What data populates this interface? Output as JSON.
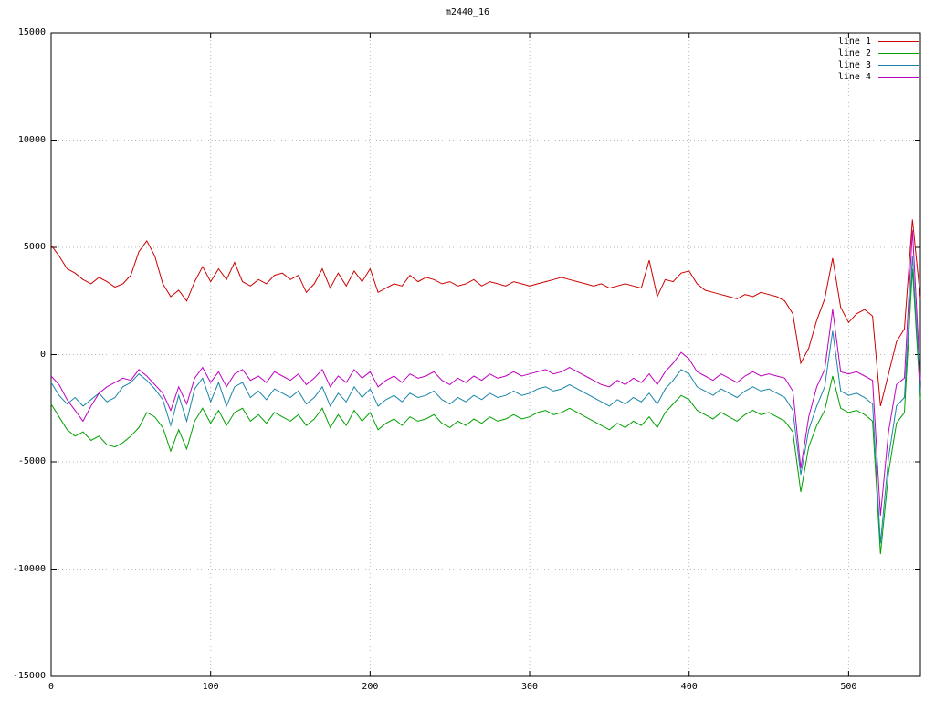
{
  "chart_data": {
    "type": "line",
    "title": "m2440_16",
    "xlabel": "",
    "ylabel": "",
    "xlim": [
      0,
      545
    ],
    "ylim": [
      -15000,
      15000
    ],
    "x_ticks": [
      0,
      100,
      200,
      300,
      400,
      500
    ],
    "y_ticks": [
      -15000,
      -10000,
      -5000,
      0,
      5000,
      10000,
      15000
    ],
    "grid": true,
    "grid_style": "dotted",
    "legend_position": "top-right",
    "background_color": "#ffffff",
    "x_start": 0,
    "x_step": 5,
    "series": [
      {
        "name": "line 1",
        "color": "#cc0000",
        "values": [
          5100,
          4600,
          4000,
          3800,
          3500,
          3300,
          3600,
          3400,
          3150,
          3300,
          3700,
          4800,
          5300,
          4600,
          3300,
          2700,
          3000,
          2500,
          3400,
          4100,
          3400,
          4000,
          3500,
          4300,
          3400,
          3200,
          3500,
          3300,
          3700,
          3800,
          3500,
          3700,
          2900,
          3300,
          4000,
          3100,
          3800,
          3200,
          3900,
          3400,
          4000,
          2900,
          3100,
          3300,
          3200,
          3700,
          3400,
          3600,
          3500,
          3300,
          3400,
          3200,
          3300,
          3500,
          3200,
          3400,
          3300,
          3200,
          3400,
          3300,
          3200,
          3300,
          3400,
          3500,
          3600,
          3500,
          3400,
          3300,
          3200,
          3300,
          3100,
          3200,
          3300,
          3200,
          3100,
          4400,
          2700,
          3500,
          3400,
          3800,
          3900,
          3300,
          3000,
          2900,
          2800,
          2700,
          2600,
          2800,
          2700,
          2900,
          2800,
          2700,
          2500,
          1900,
          -400,
          300,
          1600,
          2600,
          4500,
          2200,
          1500,
          1900,
          2100,
          1800,
          -2400,
          -900,
          600,
          1200,
          6300,
          2600
        ]
      },
      {
        "name": "line 2",
        "color": "#00a000",
        "values": [
          -2300,
          -2900,
          -3500,
          -3800,
          -3600,
          -4000,
          -3800,
          -4200,
          -4300,
          -4100,
          -3800,
          -3400,
          -2700,
          -2900,
          -3400,
          -4500,
          -3500,
          -4400,
          -3100,
          -2500,
          -3200,
          -2600,
          -3300,
          -2700,
          -2500,
          -3100,
          -2800,
          -3200,
          -2700,
          -2900,
          -3100,
          -2800,
          -3300,
          -3000,
          -2500,
          -3400,
          -2800,
          -3300,
          -2600,
          -3100,
          -2700,
          -3500,
          -3200,
          -3000,
          -3300,
          -2900,
          -3100,
          -3000,
          -2800,
          -3200,
          -3400,
          -3100,
          -3300,
          -3000,
          -3200,
          -2900,
          -3100,
          -3000,
          -2800,
          -3000,
          -2900,
          -2700,
          -2600,
          -2800,
          -2700,
          -2500,
          -2700,
          -2900,
          -3100,
          -3300,
          -3500,
          -3200,
          -3400,
          -3100,
          -3300,
          -2900,
          -3400,
          -2700,
          -2300,
          -1900,
          -2100,
          -2600,
          -2800,
          -3000,
          -2700,
          -2900,
          -3100,
          -2800,
          -2600,
          -2800,
          -2700,
          -2900,
          -3100,
          -3600,
          -6400,
          -4300,
          -3300,
          -2600,
          -1000,
          -2500,
          -2700,
          -2600,
          -2800,
          -3100,
          -9300,
          -5500,
          -3200,
          -2700,
          4000,
          -2100
        ]
      },
      {
        "name": "line 3",
        "color": "#1a85a8",
        "values": [
          -1300,
          -1900,
          -2300,
          -2000,
          -2400,
          -2100,
          -1800,
          -2200,
          -2000,
          -1500,
          -1300,
          -900,
          -1200,
          -1600,
          -2100,
          -3300,
          -1900,
          -3100,
          -1600,
          -1100,
          -2200,
          -1300,
          -2400,
          -1500,
          -1300,
          -2000,
          -1700,
          -2100,
          -1600,
          -1800,
          -2000,
          -1700,
          -2300,
          -2000,
          -1500,
          -2400,
          -1800,
          -2200,
          -1500,
          -2000,
          -1600,
          -2400,
          -2100,
          -1900,
          -2200,
          -1800,
          -2000,
          -1900,
          -1700,
          -2100,
          -2300,
          -2000,
          -2200,
          -1900,
          -2100,
          -1800,
          -2000,
          -1900,
          -1700,
          -1900,
          -1800,
          -1600,
          -1500,
          -1700,
          -1600,
          -1400,
          -1600,
          -1800,
          -2000,
          -2200,
          -2400,
          -2100,
          -2300,
          -2000,
          -2200,
          -1800,
          -2300,
          -1600,
          -1200,
          -700,
          -900,
          -1500,
          -1700,
          -1900,
          -1600,
          -1800,
          -2000,
          -1700,
          -1500,
          -1700,
          -1600,
          -1800,
          -2000,
          -2600,
          -5600,
          -3500,
          -2400,
          -1500,
          1100,
          -1700,
          -1900,
          -1800,
          -2000,
          -2300,
          -8800,
          -4800,
          -2400,
          -2000,
          4600,
          -1800
        ]
      },
      {
        "name": "line 4",
        "color": "#bf00bf",
        "values": [
          -1000,
          -1400,
          -2100,
          -2600,
          -3100,
          -2400,
          -1800,
          -1500,
          -1300,
          -1100,
          -1200,
          -700,
          -1000,
          -1400,
          -1800,
          -2600,
          -1500,
          -2300,
          -1100,
          -600,
          -1300,
          -800,
          -1500,
          -900,
          -700,
          -1200,
          -1000,
          -1300,
          -800,
          -1000,
          -1200,
          -900,
          -1400,
          -1100,
          -700,
          -1500,
          -1000,
          -1300,
          -700,
          -1100,
          -800,
          -1500,
          -1200,
          -1000,
          -1300,
          -900,
          -1100,
          -1000,
          -800,
          -1200,
          -1400,
          -1100,
          -1300,
          -1000,
          -1200,
          -900,
          -1100,
          -1000,
          -800,
          -1000,
          -900,
          -800,
          -700,
          -900,
          -800,
          -600,
          -800,
          -1000,
          -1200,
          -1400,
          -1500,
          -1200,
          -1400,
          -1100,
          -1300,
          -900,
          -1400,
          -800,
          -400,
          100,
          -200,
          -800,
          -1000,
          -1200,
          -900,
          -1100,
          -1300,
          -1000,
          -800,
          -1000,
          -900,
          -1000,
          -1100,
          -1700,
          -5300,
          -2900,
          -1500,
          -700,
          2100,
          -800,
          -900,
          -800,
          -1000,
          -1200,
          -7500,
          -3600,
          -1400,
          -1100,
          5800,
          -1200
        ]
      }
    ]
  }
}
